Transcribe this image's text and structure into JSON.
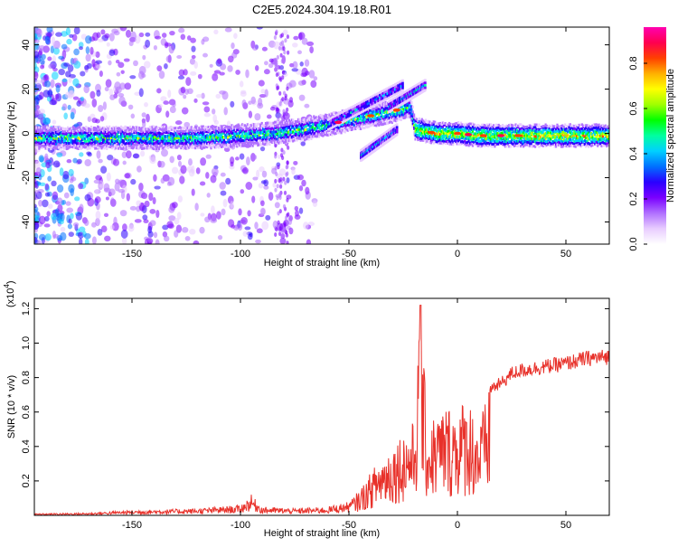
{
  "title": "C2E5.2024.304.19.18.R01",
  "chart_data": [
    {
      "type": "heatmap",
      "xlabel": "Height of straight line (km)",
      "ylabel": "Frequency (Hz)",
      "xlim": [
        -195,
        70
      ],
      "ylim": [
        -50,
        48
      ],
      "xticks": [
        -150,
        -100,
        -50,
        0,
        50
      ],
      "yticks": [
        -40,
        -20,
        0,
        20,
        40
      ],
      "colorbar": {
        "label": "Normalized spectral amplitude",
        "range": [
          0,
          0.96
        ],
        "ticks": [
          0.0,
          0.2,
          0.4,
          0.6,
          0.8
        ],
        "colors": [
          "#ffffff",
          "#e8ccff",
          "#b070ff",
          "#7a00ff",
          "#2a00ff",
          "#0070ff",
          "#00d0ff",
          "#00ffa0",
          "#00ff00",
          "#a0ff00",
          "#ffff00",
          "#ffb000",
          "#ff4000",
          "#ff0050",
          "#ff00b0"
        ]
      },
      "ridge": [
        {
          "x": -195,
          "y": -2
        },
        {
          "x": -170,
          "y": -2
        },
        {
          "x": -150,
          "y": -2
        },
        {
          "x": -120,
          "y": -2
        },
        {
          "x": -100,
          "y": -1
        },
        {
          "x": -85,
          "y": 0
        },
        {
          "x": -78,
          "y": 1
        },
        {
          "x": -70,
          "y": 2
        },
        {
          "x": -60,
          "y": 4
        },
        {
          "x": -50,
          "y": 6
        },
        {
          "x": -40,
          "y": 8
        },
        {
          "x": -30,
          "y": 10
        },
        {
          "x": -22,
          "y": 12
        },
        {
          "x": -20,
          "y": 2
        },
        {
          "x": -10,
          "y": 0
        },
        {
          "x": 0,
          "y": 0
        },
        {
          "x": 10,
          "y": -1
        },
        {
          "x": 30,
          "y": -1
        },
        {
          "x": 50,
          "y": -1
        },
        {
          "x": 70,
          "y": -1
        }
      ]
    },
    {
      "type": "line",
      "xlabel": "Height of straight line (km)",
      "ylabel": "SNR (10 * v/v)",
      "y_multiplier": "(x10",
      "y_multiplier_exp": "4",
      "y_multiplier_close": ")",
      "xlim": [
        -195,
        70
      ],
      "ylim": [
        0,
        1.26
      ],
      "xticks": [
        -150,
        -100,
        -50,
        0,
        50
      ],
      "yticks": [
        0.2,
        0.4,
        0.6,
        0.8,
        1.0,
        1.2
      ],
      "color": "#e8312a",
      "envelope": [
        {
          "x": -195,
          "y": 0.01
        },
        {
          "x": -170,
          "y": 0.015
        },
        {
          "x": -150,
          "y": 0.03
        },
        {
          "x": -120,
          "y": 0.04
        },
        {
          "x": -100,
          "y": 0.06
        },
        {
          "x": -95,
          "y": 0.12
        },
        {
          "x": -90,
          "y": 0.05
        },
        {
          "x": -75,
          "y": 0.04
        },
        {
          "x": -60,
          "y": 0.05
        },
        {
          "x": -50,
          "y": 0.08
        },
        {
          "x": -45,
          "y": 0.15
        },
        {
          "x": -40,
          "y": 0.25
        },
        {
          "x": -35,
          "y": 0.35
        },
        {
          "x": -30,
          "y": 0.42
        },
        {
          "x": -25,
          "y": 0.5
        },
        {
          "x": -20,
          "y": 0.55
        },
        {
          "x": -17,
          "y": 1.22
        },
        {
          "x": -14,
          "y": 0.55
        },
        {
          "x": -10,
          "y": 0.6
        },
        {
          "x": -5,
          "y": 0.65
        },
        {
          "x": 0,
          "y": 0.65
        },
        {
          "x": 5,
          "y": 0.7
        },
        {
          "x": 10,
          "y": 0.55
        },
        {
          "x": 15,
          "y": 0.75
        },
        {
          "x": 20,
          "y": 0.78
        },
        {
          "x": 25,
          "y": 0.84
        },
        {
          "x": 30,
          "y": 0.86
        },
        {
          "x": 40,
          "y": 0.88
        },
        {
          "x": 50,
          "y": 0.9
        },
        {
          "x": 60,
          "y": 0.93
        },
        {
          "x": 70,
          "y": 0.94
        }
      ]
    }
  ]
}
